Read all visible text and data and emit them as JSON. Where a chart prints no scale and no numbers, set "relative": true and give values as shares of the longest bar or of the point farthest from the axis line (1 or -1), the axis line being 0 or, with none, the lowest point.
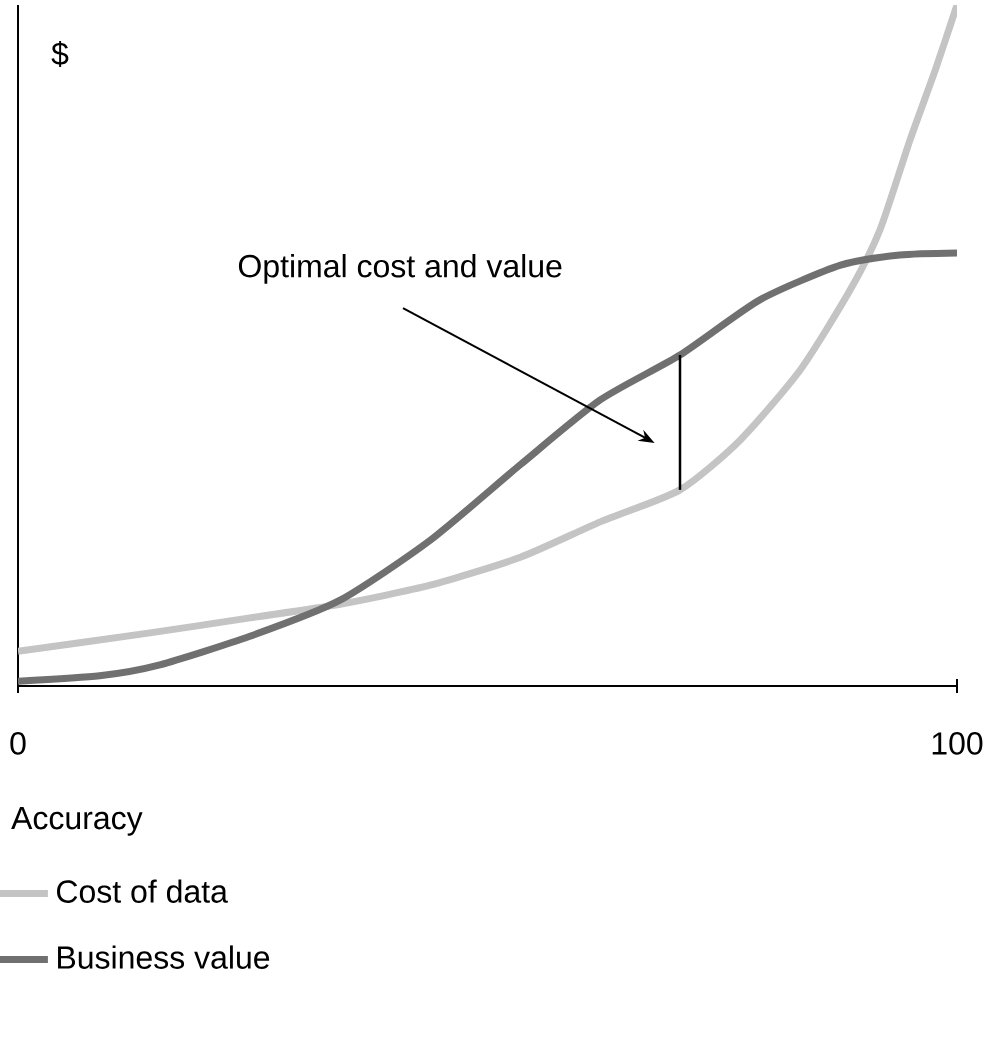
{
  "chart_data": {
    "type": "line",
    "relative": true,
    "xlabel": "Accuracy",
    "ylabel": "$",
    "xlim": [
      0,
      100
    ],
    "xticks": [
      0,
      100
    ],
    "grid": false,
    "legend": "bottom left",
    "marker": "none",
    "line_style": "solid",
    "annotations": [
      "Optimal cost and value"
    ],
    "series": [
      {
        "name": "Cost of data",
        "color": "#c4c4c4",
        "x": [
          0,
          14.06,
          24.7,
          34.3,
          43.9,
          53.5,
          62.0,
          70.5,
          76.9,
          83.3,
          88.6,
          91.8,
          95.0,
          97.7,
          100
        ],
        "values": [
          0.051,
          0.078,
          0.1,
          0.12,
          0.148,
          0.189,
          0.241,
          0.288,
          0.361,
          0.464,
          0.581,
          0.67,
          0.802,
          0.905,
          1.0
        ]
      },
      {
        "name": "Business value",
        "color": "#707070",
        "x": [
          0,
          8.7,
          15.1,
          24.7,
          34.3,
          43.9,
          53.5,
          62.0,
          70.5,
          79.0,
          87.6,
          93.9,
          100
        ],
        "values": [
          0.007,
          0.015,
          0.031,
          0.073,
          0.126,
          0.214,
          0.325,
          0.42,
          0.486,
          0.567,
          0.618,
          0.633,
          0.636
        ]
      },
      {
        "color": "#000000",
        "x": [
          70.5,
          70.5
        ],
        "values": [
          0.288,
          0.486
        ]
      }
    ]
  }
}
